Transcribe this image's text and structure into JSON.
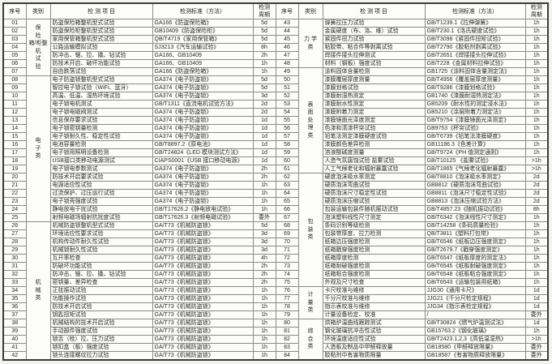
{
  "table": {
    "header": {
      "no": "序号",
      "category": "类别",
      "item": "检 测 项 目",
      "standard": "检测标准（方法）",
      "period": "检测\n周期"
    },
    "left": {
      "categories": [
        {
          "label": "保险箱/柜整机试验",
          "display": "保\n险\n箱/柜整\n机\n试\n验",
          "start": 0,
          "span": 7
        },
        {
          "label": "电子类",
          "display": "电\n子\n类",
          "start": 7,
          "span": 18
        },
        {
          "label": "机械类",
          "display": "机\n械\n类",
          "start": 25,
          "span": 17
        }
      ],
      "rows": [
        {
          "no": "01",
          "item": "防盗保险箱整机型式试验",
          "standard": "GA166《防盗保险箱》",
          "period": "5d"
        },
        {
          "no": "02",
          "item": "防盗保险柜整机型式试验",
          "standard": "GB10409《防盗保险柜》",
          "period": "5d"
        },
        {
          "no": "03",
          "item": "家用保管箱整机型式试验",
          "standard": "QB/T4719《家用保管箱》",
          "period": "5d"
        },
        {
          "no": "04",
          "item": "公路运输模拟试验",
          "standard": "SJ3213《汽车运输试验》",
          "period": "8h"
        },
        {
          "no": "05",
          "item": "防冲击、锯、拉、撬、钻试验",
          "standard": "GA166、GB10409",
          "period": "2h"
        },
        {
          "no": "06",
          "item": "防技术开启、破坏功能试验",
          "standard": "GA166、GB10409",
          "period": "1h"
        },
        {
          "no": "07",
          "item": "自由跌落试验",
          "standard": "GA166《防盗保险箱》",
          "period": "1h"
        },
        {
          "no": "08",
          "item": "电子防盗锁整机型式试验",
          "standard": "GA374《电子防盗锁》",
          "period": "5d"
        },
        {
          "no": "09",
          "item": "智控电子锁试验（WiFi、蓝牙）",
          "standard": "GA374《电子防盗锁》",
          "period": "5d"
        },
        {
          "no": "10",
          "item": "高温、低温、湿热环境试验",
          "standard": "GA374《电子防盗锁》",
          "period": "3d"
        },
        {
          "no": "11",
          "item": "电子锁电机测试",
          "standard": "GB/T1311《直流电机试验方法》",
          "period": "2d"
        },
        {
          "no": "12",
          "item": "电子锁电磁阀测试",
          "standard": "GA374《电子防盗锁》",
          "period": "2d"
        },
        {
          "no": "13",
          "item": "信息保存要求试验",
          "standard": "GA374《电子防盗锁》",
          "period": "1d"
        },
        {
          "no": "14",
          "item": "电子锁密钥量检测",
          "standard": "GA374《电子防盗锁》",
          "period": "1d"
        },
        {
          "no": "15",
          "item": "电子锁耐久性、稳定性试验",
          "standard": "GA374《电子防盗锁》",
          "period": "1d"
        },
        {
          "no": "16",
          "item": "电池容量检测",
          "standard": "GB/T8897.2《原电池》",
          "period": "1d"
        },
        {
          "no": "17",
          "item": "电子锁用照明设备检测",
          "standard": "GB/T24824《LED 模块测试方法》",
          "period": "1d"
        },
        {
          "no": "18",
          "item": "USB接口类移动电源测试",
          "standard": "CIAPS0001《USB 接口移动电源》",
          "period": "1d"
        },
        {
          "no": "19",
          "item": "电子锁电参数测试",
          "standard": "GA374《电子防盗锁》",
          "period": "2h"
        },
        {
          "no": "20",
          "item": "防技术开启要求试验",
          "standard": "GA374《电子防盗锁》",
          "period": "2h"
        },
        {
          "no": "21",
          "item": "电源适应性试验",
          "standard": "GA374《电子防盗锁》",
          "period": "1h"
        },
        {
          "no": "22",
          "item": "过流保护、过压运行试验",
          "standard": "GA374《电子防盗锁》",
          "period": "1h"
        },
        {
          "no": "23",
          "item": "电子锁壳强度试验",
          "standard": "GA374《电子防盗锁》",
          "period": "1h"
        },
        {
          "no": "24",
          "item": "静电放电干扰试验",
          "standard": "GB/T17626.2《静电放电试验》",
          "period": "1h"
        },
        {
          "no": "25",
          "item": "射频电磁场辐射抗扰度试验",
          "standard": "GB/T17626.3《射频电磁试验》",
          "period": "委外"
        },
        {
          "no": "26",
          "item": "机械防盗锁整机型式试验",
          "standard": "GA/T73《机械防盗锁》",
          "period": "5d"
        },
        {
          "no": "27",
          "item": "环境适应性要求试验",
          "standard": "GA/T73《机械防盗锁》",
          "period": "3d"
        },
        {
          "no": "28",
          "item": "机构传动件耐久性试验",
          "standard": "GA/T73《机械防盗锁》",
          "period": "3d"
        },
        {
          "no": "29",
          "item": "机械锁耐久性试验",
          "standard": "GA/T73《机械防盗锁》",
          "period": "3d"
        },
        {
          "no": "30",
          "item": "互开率检查",
          "standard": "GA/T73《机械防盗锁》",
          "period": "4h"
        },
        {
          "no": "31",
          "item": "防破坏功能试验",
          "standard": "GA/T73《机械防盗锁》",
          "period": "2h"
        },
        {
          "no": "32",
          "item": "防冲击、锯、拉、撬、钻试验",
          "standard": "GA/T73《机械防盗锁》",
          "period": "2h"
        },
        {
          "no": "33",
          "item": "密钥量、差异检查",
          "standard": "GA/T73《机械防盗锁》",
          "period": "2h"
        },
        {
          "no": "34",
          "item": "正弦振动试验",
          "standard": "GA/T73《机械防盗锁》",
          "period": "1h"
        },
        {
          "no": "35",
          "item": "功能操作试验",
          "standard": "GA/T73《机械防盗锁》",
          "period": "1h"
        },
        {
          "no": "36",
          "item": "防技术开启试验",
          "standard": "GA/T73《机械防盗锁》",
          "period": "1h"
        },
        {
          "no": "37",
          "item": "钥匙扭矩试验",
          "standard": "GA/T73《机械防盗锁》",
          "period": "1h"
        },
        {
          "no": "38",
          "item": "机械结构的技术开启试验",
          "standard": "GA/T73《机械防盗锁》",
          "period": "1h"
        },
        {
          "no": "39",
          "item": "手动部件强度试验",
          "standard": "GA/T73《机械防盗锁》",
          "period": "1h"
        },
        {
          "no": "40",
          "item": "锁舌（栓）拉、压力试验",
          "standard": "GA/T73《机械防盗锁》",
          "period": "1h"
        },
        {
          "no": "41",
          "item": "锁扣盒（板）强度试验",
          "standard": "GA/T73《机械防盗锁》",
          "period": "1h"
        },
        {
          "no": "42",
          "item": "锁头连接螺纹拉力试验",
          "standard": "GA/T73《机械防盗锁》",
          "period": "1h"
        }
      ]
    },
    "right": {
      "categories": [
        {
          "label": "力学类",
          "display": "力 学\n类",
          "start": 0,
          "span": 6
        },
        {
          "label": "表面处理类",
          "display": "表\n面\n处\n理\n类",
          "start": 6,
          "span": 13
        },
        {
          "label": "包装类",
          "display": "包\n装\n类",
          "start": 19,
          "span": 14
        },
        {
          "label": "计量类",
          "display": "计\n量\n类",
          "start": 33,
          "span": 4
        },
        {
          "label": "综合类",
          "display": "综\n合\n类",
          "start": 37,
          "span": 5
        }
      ],
      "rows": [
        {
          "no": "43",
          "item": "弹簧拉压力试验",
          "standard": "GB/T1239.1《拉伸弹簧》",
          "period": "1h"
        },
        {
          "no": "44",
          "item": "金属硬度（布、洛、维）试验",
          "standard": "GB/T230.1《洛氏硬度试验》",
          "period": "1h"
        },
        {
          "no": "45",
          "item": "紧固件扭力试验",
          "standard": "GB/T3098《紧固件扭矩试验》",
          "period": "1h"
        },
        {
          "no": "46",
          "item": "粘胶带、粘合件等剥离试验",
          "standard": "GB/T2790《胶粘剂剥离试验》",
          "period": "1h"
        },
        {
          "no": "47",
          "item": "焊接件接头拉伸测试",
          "standard": "GB/T2651《焊接接头拉伸试验》",
          "period": "1h"
        },
        {
          "no": "48",
          "item": "材料（钢板）强度试验",
          "standard": "GB/T228《金属材料拉伸试验》",
          "period": "1h"
        },
        {
          "no": "49",
          "item": "涂料固体含量检测",
          "standard": "GB1725《涂料固体含量测定法》",
          "period": "1h"
        },
        {
          "no": "50",
          "item": "漆膜覆层厚度测量",
          "standard": "GB/T4956《覆盖层厚度测量》",
          "period": "1h"
        },
        {
          "no": "51",
          "item": "漆膜划格试验",
          "standard": "GB/T9286《漆膜划格试验》",
          "period": "1h"
        },
        {
          "no": "52",
          "item": "漆膜耐湿热测定",
          "standard": "GB1740《漆膜耐湿热测定法》",
          "period": "1h"
        },
        {
          "no": "53",
          "item": "漆膜耐水性测定",
          "standard": "GB5209《耐水性的测定浸水法》",
          "period": "1h"
        },
        {
          "no": "54",
          "item": "漆膜附着力测定",
          "standard": "GB5210《涂层附着力测定法》",
          "period": "1h"
        },
        {
          "no": "55",
          "item": "漆膜镜面光泽度测定",
          "standard": "GB/T9754《漆膜镜面光泽测定》",
          "period": "1h"
        },
        {
          "no": "56",
          "item": "色漆和清漆杯突试验",
          "standard": "GB9753《杯突试验》",
          "period": "1h"
        },
        {
          "no": "57",
          "item": "铅笔法测定漆膜硬度试验",
          "standard": "GB/T6739《铅笔法漆膜硬度》",
          "period": "1h"
        },
        {
          "no": "58",
          "item": "漆膜颜色差异检测",
          "standard": "GB11186.3《色差计算》",
          "period": "1h"
        },
        {
          "no": "59",
          "item": "溶液酸碱度测量",
          "standard": "GB/T9724《PH 值测定通则》",
          "period": "1h"
        },
        {
          "no": "60",
          "item": "人造气氛腐蚀试验 盐雾试验",
          "standard": "GB/T10125 《盐雾试验》",
          "period": ">1h"
        },
        {
          "no": "61",
          "item": "人工气候老化和辐射暴露试验",
          "standard": "GB/T1865《气候老化辐射暴露》",
          "period": ">1h"
        },
        {
          "no": "62",
          "item": "硬度泡沫吸水率测定",
          "standard": "GB/T8810《泡沫吸水率测定》",
          "period": "2d"
        },
        {
          "no": "63",
          "item": "硬质泡沫弯曲试验",
          "standard": "GB8812《硬质泡沫弯曲试验》",
          "period": "2d"
        },
        {
          "no": "64",
          "item": "硬质泡沫尺寸稳定性试验",
          "standard": "GB8811《泡沫尺寸稳定性试验》",
          "period": "2d"
        },
        {
          "no": "65",
          "item": "硬质泡沫压缩试验",
          "standard": "GB8813《泡沫压缩试验方法》",
          "period": "2d"
        },
        {
          "no": "66",
          "item": "包装运输包装件随机振动试验",
          "standard": "GB/T4857.23《随机振动试验》",
          "period": "8h"
        },
        {
          "no": "67",
          "item": "泡沫塑料线性尺寸测定",
          "standard": "GB/T6342《泡沫线性尺寸测定》",
          "period": "1h"
        },
        {
          "no": "68",
          "item": "条码识别等级检测",
          "standard": "GB/T14258《条码质量检验》",
          "period": "1h"
        },
        {
          "no": "69",
          "item": "包装带厚度、拉力检测",
          "standard": "QB/T3811《塑料打包带》",
          "period": "1h"
        },
        {
          "no": "70",
          "item": "纸箱边压强度检测",
          "standard": "GB/T6546《纸板边压强度测定》",
          "period": "1h"
        },
        {
          "no": "71",
          "item": "纸箱戳穿强度检测",
          "standard": "GB/T2679.7《戳穿强度测定》",
          "period": "1h"
        },
        {
          "no": "72",
          "item": "纸箱厚度检测",
          "standard": "GB/T6547《纸板厚度的测定法》",
          "period": "1h"
        },
        {
          "no": "73",
          "item": "纸箱耐破强度检测",
          "standard": "GB/T6545《纸板耐破强度测定》",
          "period": "1h"
        },
        {
          "no": "74",
          "item": "纸箱粘合强度检测",
          "standard": "GB/T6548《纸板粘合强度测定》",
          "period": "1h"
        },
        {
          "no": "75",
          "item": "外观及尺寸检查",
          "standard": "GB/T6543《运输包装用纸箱》",
          "period": "1h"
        },
        {
          "no": "76",
          "item": "卡尺校准与维修",
          "standard": "JJG30《通用卡尺》",
          "period": "1d"
        },
        {
          "no": "77",
          "item": "千分尺校准与维修",
          "standard": "JJG21《千分尺检定规程》",
          "period": "1d"
        },
        {
          "no": "78",
          "item": "指示表校准与维修",
          "standard": "JJG34《指示表检定规程》",
          "period": "1d"
        },
        {
          "no": "79",
          "item": "计量设备检定、校准",
          "standard": "/",
          "period": "委外"
        },
        {
          "no": "80",
          "item": "烘箱炉温曲线跟踪测试",
          "standard": "GB/T30824《燃气炉温测试法》",
          "period": "1d"
        },
        {
          "no": "81",
          "item": "钢化玻璃抗冲击性试验",
          "standard": "GB15763.2《钢化玻璃》",
          "period": "1h"
        },
        {
          "no": "82",
          "item": "环境温度适应性试验",
          "standard": "GB/T2423.1,2,3《高低温湿热》",
          "period": ">1h"
        },
        {
          "no": "83",
          "item": "人造板及制品中甲醛释放量",
          "standard": "GB18580《甲醛释放限量》",
          "period": "委外"
        },
        {
          "no": "84",
          "item": "胶粘剂中有害物质限量",
          "standard": "GB18587《有害物质释放限量》",
          "period": "委外"
        }
      ]
    }
  }
}
